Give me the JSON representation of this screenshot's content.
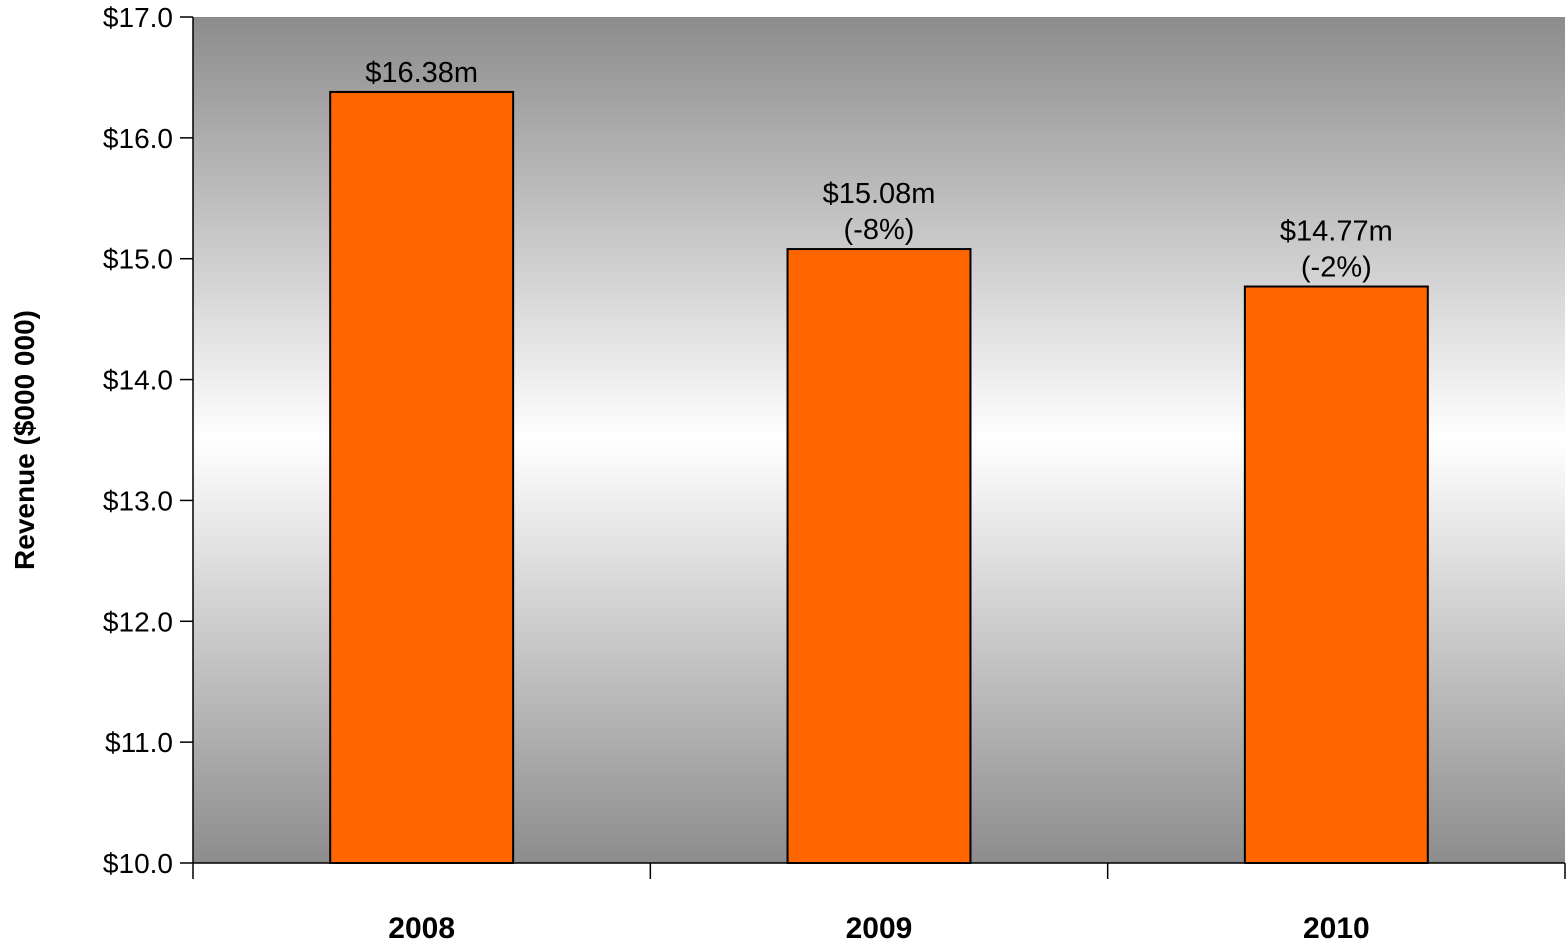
{
  "chart_data": {
    "type": "bar",
    "title": "",
    "xlabel": "",
    "ylabel": "Revenue ($000 000)",
    "ylim": [
      10.0,
      17.0
    ],
    "y_ticks": [
      "$10.0",
      "$11.0",
      "$12.0",
      "$13.0",
      "$14.0",
      "$15.0",
      "$16.0",
      "$17.0"
    ],
    "y_tick_values": [
      10,
      11,
      12,
      13,
      14,
      15,
      16,
      17
    ],
    "categories": [
      "2008",
      "2009",
      "2010"
    ],
    "values": [
      16.38,
      15.08,
      14.77
    ],
    "data_labels": [
      [
        "$16.38m"
      ],
      [
        "$15.08m",
        "(-8%)"
      ],
      [
        "$14.77m",
        "(-2%)"
      ]
    ],
    "grid": false,
    "legend": "none",
    "colors": {
      "bar_fill": "#ff6600",
      "bar_stroke": "#000000",
      "plot_bg_edge": "#8c8c8c",
      "plot_bg_center": "#ffffff"
    }
  }
}
